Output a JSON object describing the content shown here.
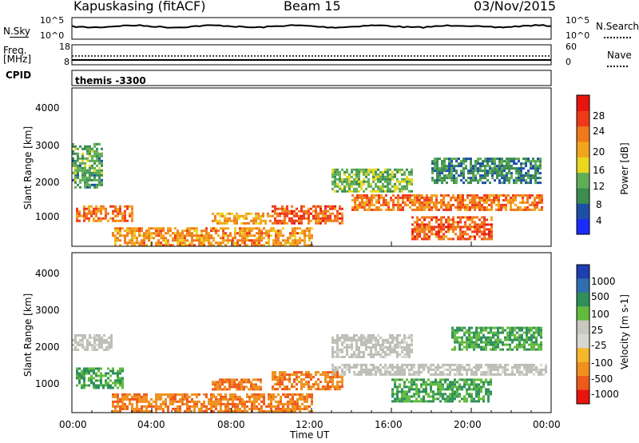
{
  "header": {
    "station": "Kapuskasing (fitACF)",
    "beam": "Beam 15",
    "date": "03/Nov/2015"
  },
  "colors": {
    "power_scale": [
      "#1a2bff",
      "#1d4fa8",
      "#3b8c4f",
      "#5fae57",
      "#e9d820",
      "#f2a51c",
      "#f07a1a",
      "#ef3a1a",
      "#e8140f"
    ],
    "velocity_scale": [
      "#1d3fb0",
      "#2f6fae",
      "#2e8f5a",
      "#63bb3e",
      "#c8c8c0",
      "#d8d8d0",
      "#f5b82a",
      "#f0901e",
      "#ee5a1a",
      "#e8140f"
    ],
    "ground_scatter": "#bebeb6"
  },
  "panels": {
    "nsky": {
      "label": "N.Sky",
      "ticks_left": [
        "10^5",
        "10^0"
      ],
      "ticks_right": [
        "10^5",
        "10^0"
      ],
      "right_label": "N.Search"
    },
    "freq": {
      "label": "Freq.",
      "unit": "[MHz]",
      "ticks_left": [
        "18",
        "8"
      ],
      "ticks_right": [
        "60",
        "0"
      ],
      "right_label": "Nave"
    },
    "cpid": {
      "label": "CPID",
      "value": "themis -3300"
    }
  },
  "chart_data": [
    {
      "type": "heatmap",
      "name": "power",
      "ylabel": "Slant Range [km]",
      "yticks": [
        "4000",
        "3000",
        "2000",
        "1000"
      ],
      "ylim": [
        180,
        4500
      ],
      "colorbar_label": "Power [dB]",
      "colorbar_ticks": [
        "28",
        "24",
        "20",
        "16",
        "12",
        "8",
        "4"
      ],
      "colorbar_range": [
        0,
        32
      ],
      "regions": [
        {
          "t0": 0.2,
          "t1": 3.0,
          "r0": 850,
          "r1": 1300,
          "level": 24
        },
        {
          "t0": 2.0,
          "t1": 12.0,
          "r0": 200,
          "r1": 700,
          "level": 22
        },
        {
          "t0": 7.0,
          "t1": 10.0,
          "r0": 800,
          "r1": 1100,
          "level": 20
        },
        {
          "t0": 10.0,
          "t1": 13.5,
          "r0": 800,
          "r1": 1300,
          "level": 26
        },
        {
          "t0": 14.0,
          "t1": 23.5,
          "r0": 1200,
          "r1": 1600,
          "level": 24
        },
        {
          "t0": 17.0,
          "t1": 21.0,
          "r0": 400,
          "r1": 1000,
          "level": 26
        },
        {
          "t0": 13.0,
          "t1": 17.0,
          "r0": 1700,
          "r1": 2300,
          "level": 12
        },
        {
          "t0": 18.0,
          "t1": 23.5,
          "r0": 1900,
          "r1": 2600,
          "level": 8
        },
        {
          "t0": 0.0,
          "t1": 1.5,
          "r0": 1800,
          "r1": 3000,
          "level": 10
        }
      ]
    },
    {
      "type": "heatmap",
      "name": "velocity",
      "ylabel": "Slant Range [km]",
      "yticks": [
        "4000",
        "3000",
        "2000",
        "1000"
      ],
      "ylim": [
        180,
        4500
      ],
      "colorbar_label": "Velocity [m s-1]",
      "colorbar_ticks": [
        "1000",
        "500",
        "100",
        "25",
        "-25",
        "-100",
        "-500",
        "-1000"
      ],
      "regions": [
        {
          "t0": 0.2,
          "t1": 2.5,
          "r0": 850,
          "r1": 1400,
          "level": 100
        },
        {
          "t0": 0.0,
          "t1": 2.0,
          "r0": 1900,
          "r1": 2300,
          "level": 0
        },
        {
          "t0": 2.0,
          "t1": 12.0,
          "r0": 200,
          "r1": 700,
          "level": -100
        },
        {
          "t0": 7.0,
          "t1": 9.5,
          "r0": 800,
          "r1": 1100,
          "level": -100
        },
        {
          "t0": 10.0,
          "t1": 13.5,
          "r0": 800,
          "r1": 1300,
          "level": -100
        },
        {
          "t0": 13.0,
          "t1": 23.8,
          "r0": 1200,
          "r1": 1500,
          "level": 0
        },
        {
          "t0": 16.0,
          "t1": 21.0,
          "r0": 500,
          "r1": 1100,
          "level": 100
        },
        {
          "t0": 13.0,
          "t1": 17.0,
          "r0": 1700,
          "r1": 2300,
          "level": 0
        },
        {
          "t0": 19.0,
          "t1": 23.5,
          "r0": 1900,
          "r1": 2500,
          "level": 50
        }
      ]
    }
  ],
  "x_axis": {
    "label": "Time UT",
    "ticks": [
      "00:00",
      "04:00",
      "08:00",
      "12:00",
      "16:00",
      "20:00",
      "00:00"
    ],
    "range_hours": [
      0,
      24
    ]
  }
}
